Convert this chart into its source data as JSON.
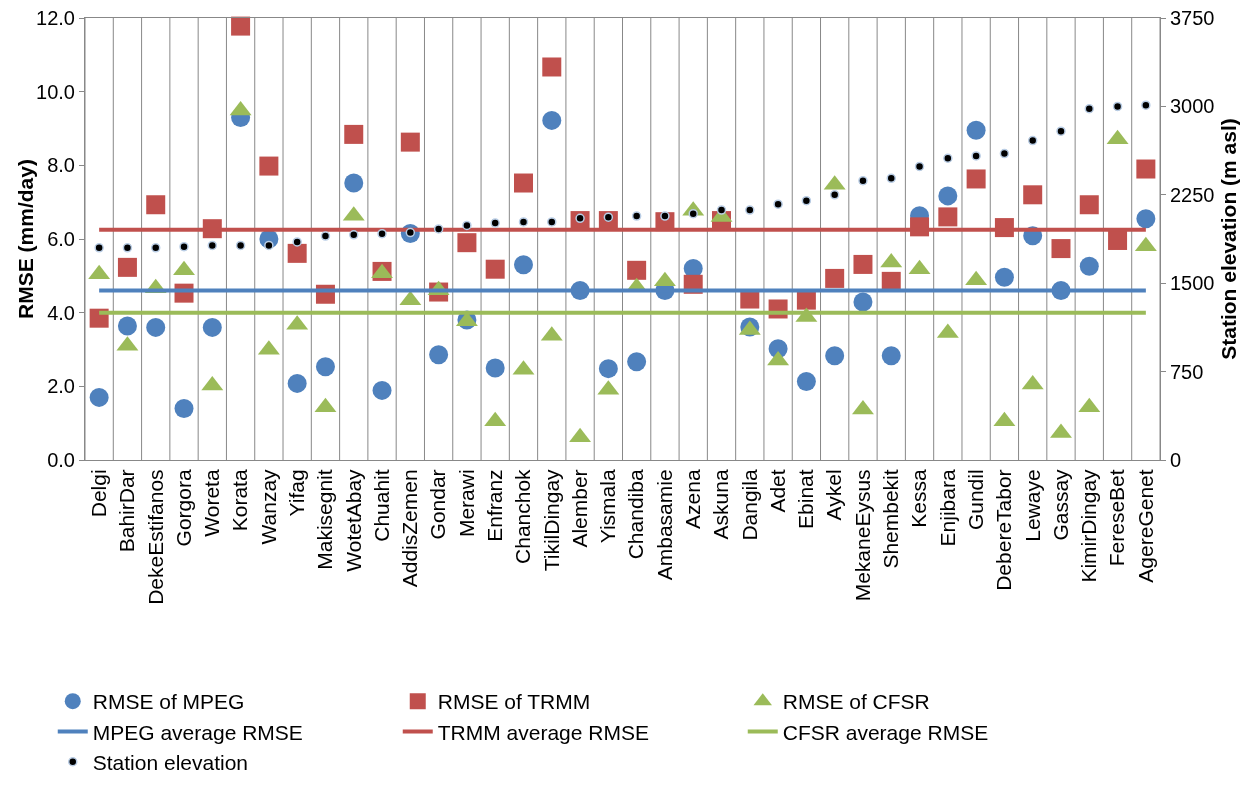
{
  "chart_data": {
    "type": "scatter",
    "ylabel": "RMSE (mm/day)",
    "y2label": "Station elevation (m asl)",
    "categories": [
      "Delgi",
      "BahirDar",
      "DekeEstifanos",
      "Gorgora",
      "Woreta",
      "Korata",
      "Wanzay",
      "Yifag",
      "Makisegnit",
      "WotetAbay",
      "Chuahit",
      "AddisZemen",
      "Gondar",
      "Merawi",
      "Enfranz",
      "Chanchok",
      "TikilDingay",
      "Alember",
      "Yismala",
      "Chandiba",
      "Ambasamie",
      "Azena",
      "Askuna",
      "Dangila",
      "Adet",
      "Ebinat",
      "Aykel",
      "MekaneEysus",
      "Shembekit",
      "Kessa",
      "Enjibara",
      "Gundil",
      "DebereTabor",
      "Lewaye",
      "Gassay",
      "KimirDingay",
      "FereseBet",
      "AgereGenet"
    ],
    "series": [
      {
        "name": "RMSE of MPEG",
        "marker": "circle",
        "color": "#4f81bd",
        "values": [
          1.7,
          3.64,
          3.6,
          1.4,
          3.6,
          9.3,
          6.0,
          2.08,
          2.53,
          7.52,
          1.89,
          6.15,
          2.86,
          3.8,
          2.5,
          5.3,
          9.22,
          4.6,
          2.48,
          2.67,
          4.6,
          5.2,
          null,
          3.61,
          3.02,
          2.13,
          2.83,
          4.29,
          2.83,
          6.63,
          7.17,
          8.95,
          4.96,
          6.09,
          4.6,
          5.26,
          null,
          6.55
        ]
      },
      {
        "name": "RMSE of TRMM",
        "marker": "square",
        "color": "#c0504d",
        "values": [
          3.85,
          5.23,
          6.93,
          4.53,
          6.28,
          11.78,
          7.98,
          5.61,
          4.5,
          8.84,
          5.12,
          8.63,
          4.56,
          5.9,
          5.18,
          7.52,
          10.67,
          6.5,
          6.5,
          5.15,
          6.47,
          4.77,
          6.5,
          4.37,
          4.1,
          4.34,
          4.93,
          5.31,
          4.85,
          6.33,
          6.6,
          7.63,
          6.31,
          7.2,
          5.74,
          6.93,
          5.96,
          7.9
        ]
      },
      {
        "name": "RMSE of CFSR",
        "marker": "triangle",
        "color": "#9bbb59",
        "values": [
          5.04,
          3.1,
          4.66,
          5.15,
          2.02,
          9.49,
          2.99,
          3.67,
          1.43,
          6.63,
          5.07,
          4.34,
          4.61,
          3.77,
          1.05,
          2.45,
          3.37,
          0.62,
          1.91,
          4.69,
          4.85,
          6.77,
          6.6,
          3.53,
          2.7,
          3.88,
          7.47,
          1.37,
          5.36,
          5.18,
          3.45,
          4.88,
          1.05,
          2.05,
          0.73,
          1.43,
          8.71,
          5.8
        ]
      },
      {
        "name": "MPEG average RMSE",
        "type": "line",
        "line_style": "solid",
        "color": "#4f81bd",
        "values": [
          4.6,
          4.6,
          4.6,
          4.6,
          4.6,
          4.6,
          4.6,
          4.6,
          4.6,
          4.6,
          4.6,
          4.6,
          4.6,
          4.6,
          4.6,
          4.6,
          4.6,
          4.6,
          4.6,
          4.6,
          4.6,
          4.6,
          4.6,
          4.6,
          4.6,
          4.6,
          4.6,
          4.6,
          4.6,
          4.6,
          4.6,
          4.6,
          4.6,
          4.6,
          4.6,
          4.6,
          4.6,
          4.6
        ]
      },
      {
        "name": "TRMM average RMSE",
        "type": "line",
        "line_style": "solid",
        "color": "#c0504d",
        "values": [
          6.25,
          6.25,
          6.25,
          6.25,
          6.25,
          6.25,
          6.25,
          6.25,
          6.25,
          6.25,
          6.25,
          6.25,
          6.25,
          6.25,
          6.25,
          6.25,
          6.25,
          6.25,
          6.25,
          6.25,
          6.25,
          6.25,
          6.25,
          6.25,
          6.25,
          6.25,
          6.25,
          6.25,
          6.25,
          6.25,
          6.25,
          6.25,
          6.25,
          6.25,
          6.25,
          6.25,
          6.25,
          6.25
        ]
      },
      {
        "name": "CFSR average RMSE",
        "type": "line",
        "line_style": "solid",
        "color": "#9bbb59",
        "values": [
          4.0,
          4.0,
          4.0,
          4.0,
          4.0,
          4.0,
          4.0,
          4.0,
          4.0,
          4.0,
          4.0,
          4.0,
          4.0,
          4.0,
          4.0,
          4.0,
          4.0,
          4.0,
          4.0,
          4.0,
          4.0,
          4.0,
          4.0,
          4.0,
          4.0,
          4.0,
          4.0,
          4.0,
          4.0,
          4.0,
          4.0,
          4.0,
          4.0,
          4.0,
          4.0,
          4.0,
          4.0,
          4.0
        ]
      },
      {
        "name": "Station elevation",
        "marker": "circle",
        "axis": "y2",
        "color": "#000000",
        "values": [
          1800,
          1800,
          1800,
          1810,
          1820,
          1820,
          1820,
          1850,
          1900,
          1910,
          1920,
          1930,
          1960,
          1990,
          2010,
          2020,
          2020,
          2050,
          2060,
          2070,
          2070,
          2090,
          2120,
          2120,
          2170,
          2200,
          2250,
          2370,
          2390,
          2490,
          2560,
          2580,
          2600,
          2710,
          2790,
          2980,
          3000,
          3010
        ]
      }
    ],
    "ylim": [
      0,
      12
    ],
    "yticks": [
      {
        "value": 0,
        "label": "0.0"
      },
      {
        "value": 2,
        "label": "2.0"
      },
      {
        "value": 4,
        "label": "4.0"
      },
      {
        "value": 6,
        "label": "6.0"
      },
      {
        "value": 8,
        "label": "8.0"
      },
      {
        "value": 10,
        "label": "10.0"
      },
      {
        "value": 12,
        "label": "12.0"
      }
    ],
    "y2lim": [
      0,
      3750
    ],
    "y2ticks": [
      0,
      750,
      1500,
      2250,
      3000,
      3750
    ],
    "grid": "x",
    "legend": "bottom"
  }
}
